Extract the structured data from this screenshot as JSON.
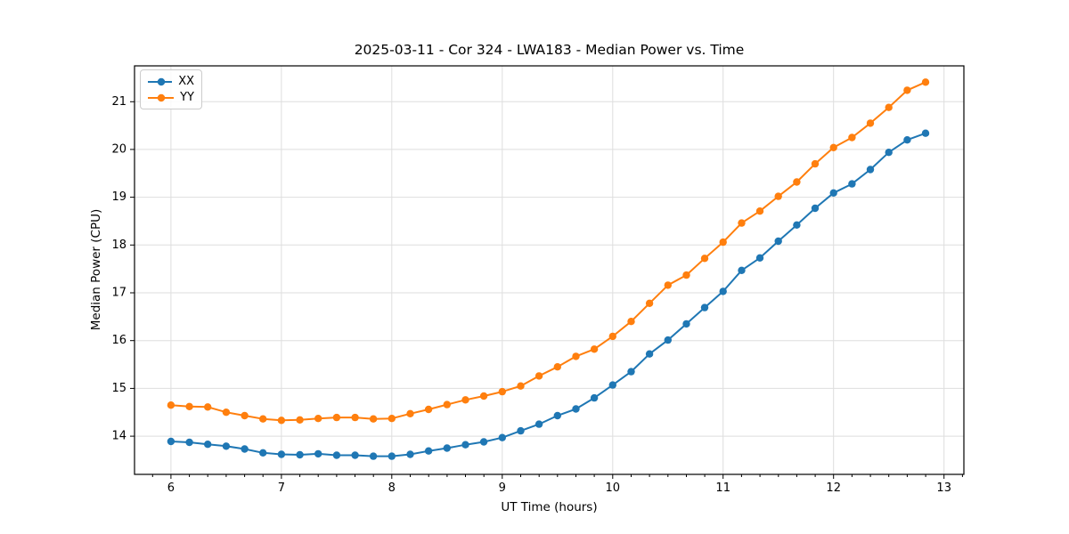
{
  "chart_data": {
    "type": "line",
    "title": "2025-03-11 - Cor 324 - LWA183 - Median Power vs. Time",
    "xlabel": "UT Time (hours)",
    "ylabel": "Median Power (CPU)",
    "xlim": [
      5.67,
      13.18
    ],
    "ylim": [
      13.2,
      21.75
    ],
    "xticks": [
      6,
      7,
      8,
      9,
      10,
      11,
      12,
      13
    ],
    "yticks": [
      14,
      15,
      16,
      17,
      18,
      19,
      20,
      21
    ],
    "x_minor_tick_step": 0.16667,
    "grid": true,
    "grid_color": "#dedede",
    "axis_color": "#000000",
    "legend_position": "upper-left",
    "x": [
      6.0,
      6.167,
      6.333,
      6.5,
      6.667,
      6.833,
      7.0,
      7.167,
      7.333,
      7.5,
      7.667,
      7.833,
      8.0,
      8.167,
      8.333,
      8.5,
      8.667,
      8.833,
      9.0,
      9.167,
      9.333,
      9.5,
      9.667,
      9.833,
      10.0,
      10.167,
      10.333,
      10.5,
      10.667,
      10.833,
      11.0,
      11.167,
      11.333,
      11.5,
      11.667,
      11.833,
      12.0,
      12.167,
      12.333,
      12.5,
      12.667,
      12.833
    ],
    "series": [
      {
        "name": "XX",
        "color": "#1f77b4",
        "values": [
          13.89,
          13.87,
          13.83,
          13.79,
          13.73,
          13.65,
          13.62,
          13.61,
          13.63,
          13.6,
          13.6,
          13.58,
          13.58,
          13.62,
          13.69,
          13.75,
          13.82,
          13.88,
          13.97,
          14.11,
          14.25,
          14.43,
          14.57,
          14.8,
          15.07,
          15.35,
          15.72,
          16.01,
          16.35,
          16.69,
          17.03,
          17.47,
          17.73,
          18.08,
          18.42,
          18.77,
          19.09,
          19.28,
          19.58,
          19.94,
          20.2,
          20.34
        ]
      },
      {
        "name": "YY",
        "color": "#ff7f0e",
        "values": [
          14.65,
          14.62,
          14.61,
          14.5,
          14.43,
          14.36,
          14.33,
          14.34,
          14.37,
          14.39,
          14.39,
          14.36,
          14.37,
          14.47,
          14.56,
          14.66,
          14.76,
          14.84,
          14.93,
          15.05,
          15.26,
          15.45,
          15.67,
          15.82,
          16.09,
          16.4,
          16.78,
          17.16,
          17.37,
          17.72,
          18.06,
          18.46,
          18.71,
          19.02,
          19.32,
          19.7,
          20.04,
          20.25,
          20.55,
          20.88,
          21.24,
          21.41
        ]
      }
    ]
  }
}
